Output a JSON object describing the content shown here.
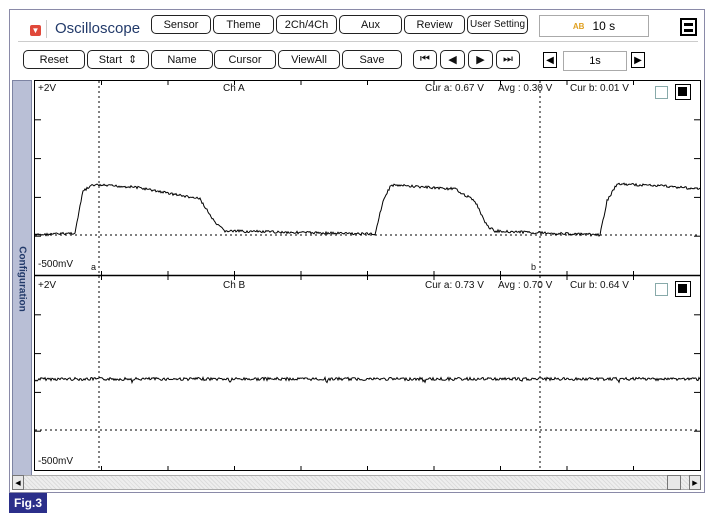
{
  "app": {
    "title": "Oscilloscope",
    "menu_icon": "dropdown-icon"
  },
  "top_buttons": [
    "Sensor",
    "Theme",
    "2Ch/4Ch",
    "Aux",
    "Review",
    "User Setting"
  ],
  "time_window": {
    "icon": "ab-span-icon",
    "value": "10 s"
  },
  "toolbar": [
    "Reset",
    "Start",
    "Name",
    "Cursor",
    "ViewAll",
    "Save"
  ],
  "nav_buttons": [
    "first-icon",
    "prev-icon",
    "next-icon",
    "last-icon"
  ],
  "step": {
    "value": "1s"
  },
  "side_tab": "Configuration",
  "channels": [
    {
      "name": "Ch A",
      "top": "+2V",
      "bottom": "-500mV",
      "cur_a": "Cur a: 0.67 V",
      "avg": "Avg  : 0.30 V",
      "cur_b": "Cur b: 0.01 V",
      "cursor_a_label": "a",
      "cursor_b_label": "b"
    },
    {
      "name": "Ch B",
      "top": "+2V",
      "bottom": "-500mV",
      "cur_a": "Cur a: 0.73 V",
      "avg": "Avg  : 0.70 V",
      "cur_b": "Cur b: 0.64 V"
    }
  ],
  "figure_label": "Fig.3",
  "colors": {
    "brand": "#223a6a",
    "trace": "#000000",
    "fig_label": "#2b2f8a"
  }
}
